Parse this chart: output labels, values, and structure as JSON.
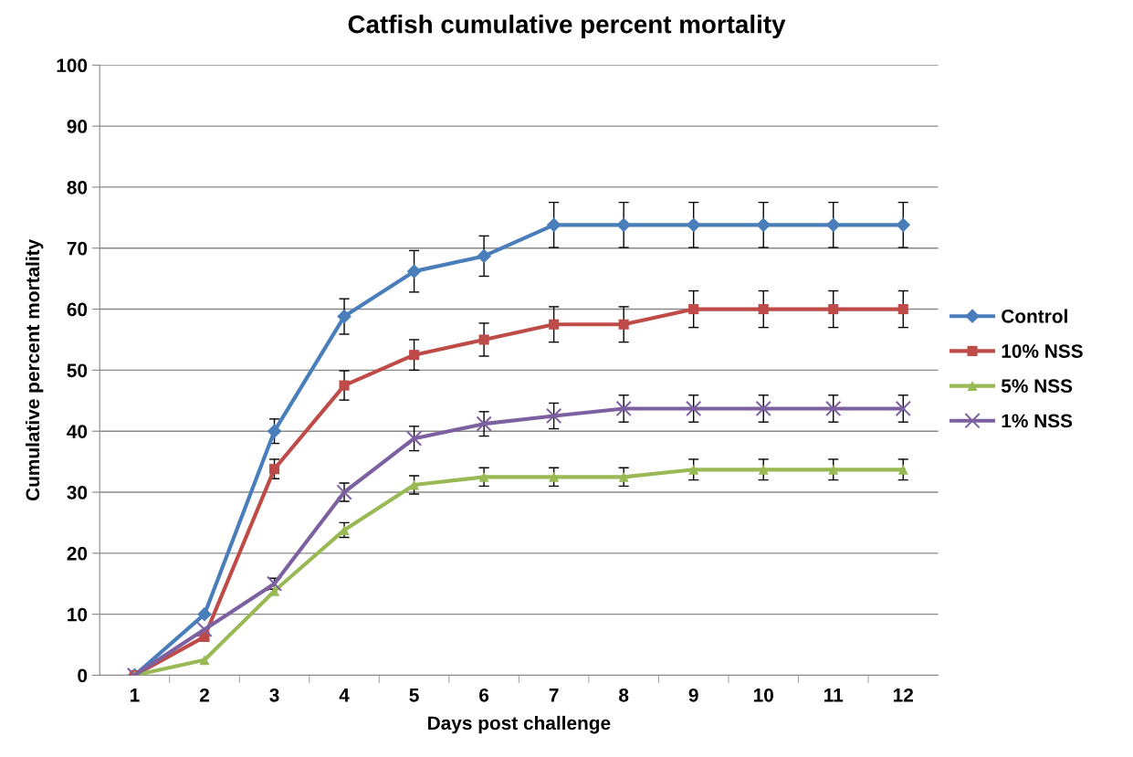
{
  "chart_data": {
    "type": "line",
    "title": "Catfish cumulative percent mortality",
    "xlabel": "Days post challenge",
    "ylabel": "Cumulative percent mortality",
    "categories": [
      "1",
      "2",
      "3",
      "4",
      "5",
      "6",
      "7",
      "8",
      "9",
      "10",
      "11",
      "12"
    ],
    "ylim": [
      0,
      100
    ],
    "yticks": [
      0,
      10,
      20,
      30,
      40,
      50,
      60,
      70,
      80,
      90,
      100
    ],
    "grid": "y",
    "legend": "right",
    "line_style": "solid",
    "series": [
      {
        "name": "Control",
        "color": "#4a7ebb",
        "marker": "diamond",
        "values": [
          0,
          10,
          40,
          58.8,
          66.2,
          68.7,
          73.8,
          73.8,
          73.8,
          73.8,
          73.8,
          73.8
        ],
        "errors": [
          null,
          null,
          2,
          2.9,
          3.4,
          3.3,
          3.7,
          3.7,
          3.7,
          3.7,
          3.7,
          3.7
        ]
      },
      {
        "name": "10% NSS",
        "color": "#be4b48",
        "marker": "square",
        "values": [
          0,
          6.3,
          33.8,
          47.5,
          52.5,
          55,
          57.5,
          57.5,
          60,
          60,
          60,
          60
        ],
        "errors": [
          null,
          null,
          1.6,
          2.4,
          2.5,
          2.7,
          2.9,
          2.9,
          3,
          3,
          3,
          3
        ]
      },
      {
        "name": "5% NSS",
        "color": "#98b954",
        "marker": "triangle",
        "values": [
          0,
          2.5,
          13.8,
          23.8,
          31.2,
          32.5,
          32.5,
          32.5,
          33.7,
          33.7,
          33.7,
          33.7
        ],
        "errors": [
          null,
          null,
          null,
          1.2,
          1.5,
          1.5,
          1.5,
          1.5,
          1.7,
          1.7,
          1.7,
          1.7
        ]
      },
      {
        "name": "1% NSS",
        "color": "#7d60a0",
        "marker": "cross",
        "values": [
          0,
          7.5,
          15,
          30,
          38.8,
          41.2,
          42.5,
          43.7,
          43.7,
          43.7,
          43.7,
          43.7
        ],
        "errors": [
          null,
          null,
          0.9,
          1.5,
          2,
          2,
          2.1,
          2.2,
          2.2,
          2.2,
          2.2,
          2.2
        ]
      }
    ]
  }
}
